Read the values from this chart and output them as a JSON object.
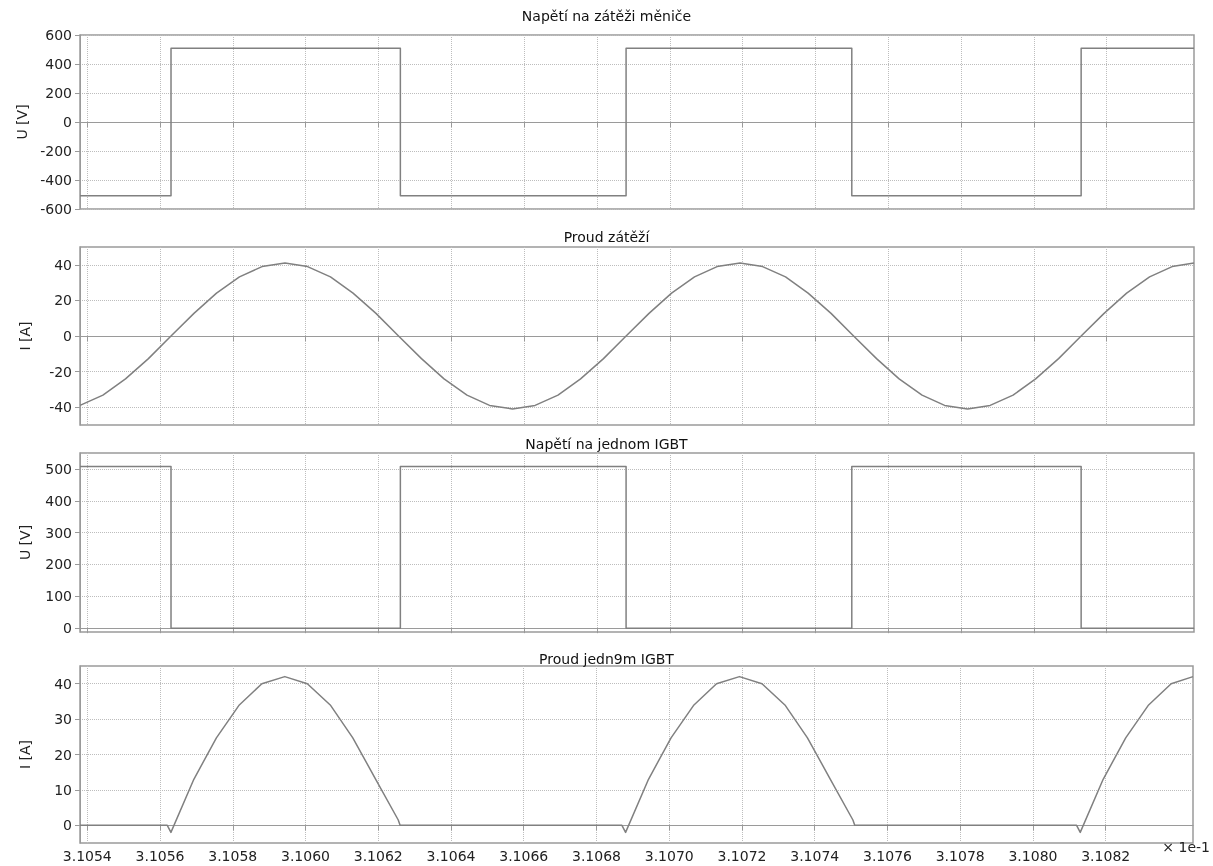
{
  "chart_data": [
    {
      "type": "step",
      "title": "Napětí na zátěži měniče",
      "ylabel": "U [V]",
      "tick_labels": "y",
      "grid": true,
      "xlim": [
        3.10538,
        3.10844
      ],
      "xticks": [
        3.1054,
        3.1056,
        3.1058,
        3.106,
        3.1062,
        3.1064,
        3.1066,
        3.1068,
        3.107,
        3.1072,
        3.1074,
        3.1076,
        3.1078,
        3.108,
        3.1082
      ],
      "ylim": [
        -600,
        600
      ],
      "yticks": [
        -600,
        -400,
        -200,
        0,
        200,
        400,
        600
      ],
      "series": [
        {
          "color": "#808080",
          "x": [
            3.10538,
            3.10563,
            3.10626,
            3.10688,
            3.1075,
            3.10813,
            3.10844
          ],
          "values": [
            -508,
            508,
            -508,
            508,
            -508,
            508,
            508
          ]
        }
      ]
    },
    {
      "type": "line",
      "title": "Proud zátěží",
      "ylabel": "I [A]",
      "tick_labels": "y",
      "grid": true,
      "xlim": [
        3.10538,
        3.10844
      ],
      "xticks": [
        3.1054,
        3.1056,
        3.1058,
        3.106,
        3.1062,
        3.1064,
        3.1066,
        3.1068,
        3.107,
        3.1072,
        3.1074,
        3.1076,
        3.1078,
        3.108,
        3.1082
      ],
      "ylim": [
        -50,
        50
      ],
      "yticks": [
        -40,
        -20,
        0,
        20,
        40
      ],
      "series": [
        {
          "color": "#808080",
          "x": [
            3.10538,
            3.105443,
            3.105505,
            3.105568,
            3.10563,
            3.105693,
            3.105755,
            3.105818,
            3.10588,
            3.105943,
            3.106005,
            3.106068,
            3.10613,
            3.106193,
            3.106255,
            3.106318,
            3.10638,
            3.106443,
            3.106505,
            3.106568,
            3.10663,
            3.106693,
            3.106755,
            3.106818,
            3.10688,
            3.106943,
            3.107005,
            3.107068,
            3.10713,
            3.107193,
            3.107255,
            3.107318,
            3.10738,
            3.107443,
            3.107505,
            3.107568,
            3.10763,
            3.107693,
            3.107755,
            3.107818,
            3.10788,
            3.107943,
            3.108005,
            3.108068,
            3.10813,
            3.108193,
            3.108255,
            3.108318,
            3.10838,
            3.10844
          ],
          "values": [
            -39,
            -33.2,
            -24.1,
            -12.7,
            0,
            12.7,
            24.1,
            33.2,
            39,
            41,
            39,
            33.2,
            24.1,
            12.7,
            0,
            -12.7,
            -24.1,
            -33.2,
            -39,
            -41,
            -39,
            -33.2,
            -24.1,
            -12.7,
            0,
            12.7,
            24.1,
            33.2,
            39,
            41,
            39,
            33.2,
            24.1,
            12.7,
            0,
            -12.7,
            -24.1,
            -33.2,
            -39,
            -41,
            -39,
            -33.2,
            -24.1,
            -12.7,
            0,
            12.7,
            24.1,
            33.2,
            39,
            41
          ]
        }
      ]
    },
    {
      "type": "step",
      "title": "Napětí na jednom IGBT",
      "ylabel": "U [V]",
      "tick_labels": "y",
      "grid": true,
      "xlim": [
        3.10538,
        3.10844
      ],
      "xticks": [
        3.1054,
        3.1056,
        3.1058,
        3.106,
        3.1062,
        3.1064,
        3.1066,
        3.1068,
        3.107,
        3.1072,
        3.1074,
        3.1076,
        3.1078,
        3.108,
        3.1082
      ],
      "ylim": [
        -12,
        550
      ],
      "yticks": [
        0,
        100,
        200,
        300,
        400,
        500
      ],
      "series": [
        {
          "color": "#808080",
          "x": [
            3.10538,
            3.10563,
            3.10626,
            3.10688,
            3.1075,
            3.10813,
            3.10844
          ],
          "values": [
            508,
            0,
            508,
            0,
            508,
            0,
            0
          ]
        }
      ]
    },
    {
      "type": "line",
      "title": "Proud jedn9m IGBT",
      "ylabel": "I [A]",
      "xlabel": "× 1e-1",
      "grid": true,
      "xlim": [
        3.10538,
        3.10844
      ],
      "xticks": [
        3.1054,
        3.1056,
        3.1058,
        {
          "value": 3.106,
          "label": "3.1060"
        },
        3.1062,
        3.1064,
        3.1066,
        3.1068,
        {
          "value": 3.107,
          "label": "3.1070"
        },
        3.1072,
        3.1074,
        3.1076,
        3.1078,
        {
          "value": 3.108,
          "label": "3.1080"
        },
        3.1082
      ],
      "ylim": [
        -5,
        45
      ],
      "yticks": [
        0,
        10,
        20,
        30,
        40
      ],
      "series": [
        {
          "color": "#808080",
          "x": [
            3.10538,
            3.10562,
            3.10563,
            3.105693,
            3.105755,
            3.105818,
            3.10588,
            3.105943,
            3.106005,
            3.106068,
            3.10613,
            3.106193,
            3.106255,
            3.10626,
            3.10687,
            3.10688,
            3.106943,
            3.107005,
            3.107068,
            3.10713,
            3.107193,
            3.107255,
            3.107318,
            3.10738,
            3.107443,
            3.107505,
            3.10751,
            3.10812,
            3.10813,
            3.108193,
            3.108255,
            3.108318,
            3.10838,
            3.10844
          ],
          "values": [
            0,
            0,
            -2,
            13,
            24.7,
            34,
            40,
            42,
            40,
            34,
            24.7,
            13,
            1.5,
            0,
            0,
            -2,
            13,
            24.7,
            34,
            40,
            42,
            40,
            34,
            24.7,
            13,
            1.5,
            0,
            0,
            -2,
            13,
            24.7,
            34,
            40,
            42
          ]
        }
      ]
    }
  ]
}
